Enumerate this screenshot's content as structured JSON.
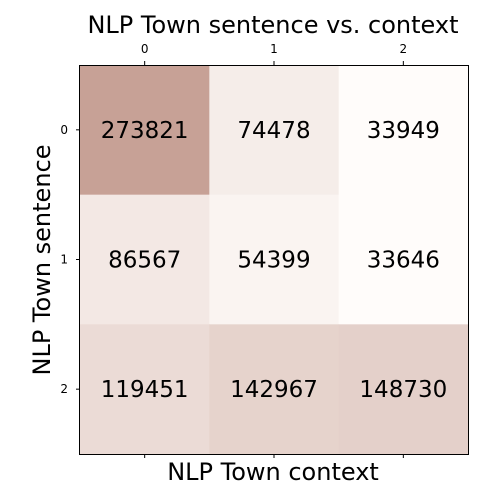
{
  "chart_data": {
    "type": "heatmap",
    "title": "NLP Town sentence vs. context",
    "xlabel": "NLP Town context",
    "ylabel": "NLP Town sentence",
    "x_categories": [
      "0",
      "1",
      "2"
    ],
    "y_categories": [
      "0",
      "1",
      "2"
    ],
    "values": [
      [
        273821,
        74478,
        33949
      ],
      [
        86567,
        54399,
        33646
      ],
      [
        119451,
        142967,
        148730
      ]
    ],
    "colormap": {
      "low": "#fffcfa",
      "high": "#c7a196"
    },
    "grid": false,
    "legend": "none"
  }
}
